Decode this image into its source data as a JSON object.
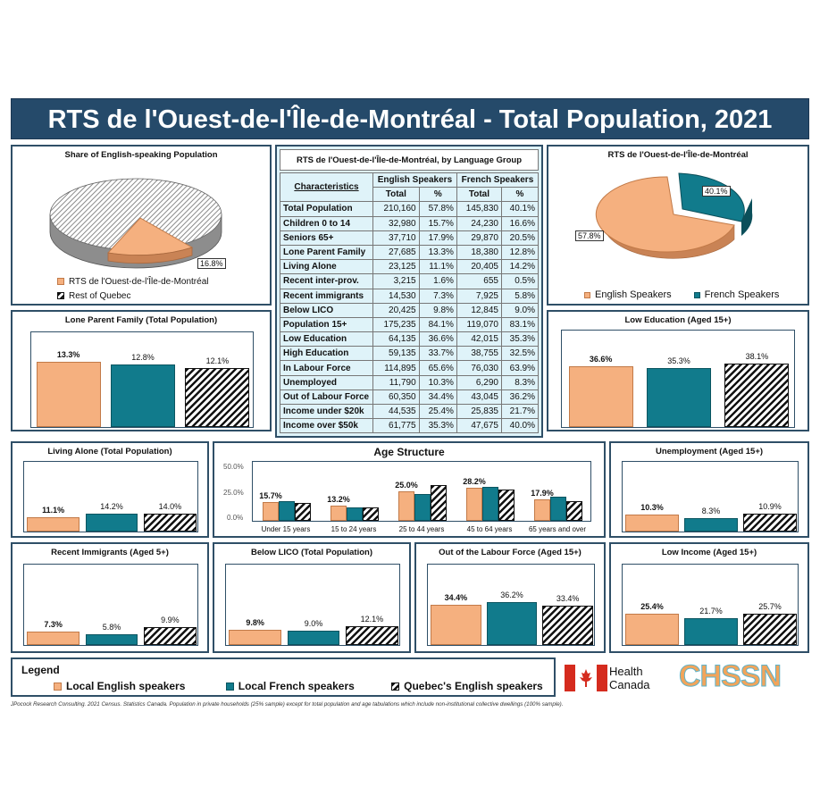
{
  "title": "RTS de l'Ouest-de-l'Île-de-Montréal - Total Population, 2021",
  "share_panel": {
    "title": "Share of English-speaking Population",
    "legend_local": "RTS de l'Ouest-de-l'Île-de-Montréal",
    "legend_rest": "Rest of Quebec",
    "slice_label": "16.8%"
  },
  "table": {
    "title": "RTS de l'Ouest-de-l'Île-de-Montréal, by Language Group",
    "col_char": "Characteristics",
    "col_eng": "English Speakers",
    "col_fr": "French Speakers",
    "col_total": "Total",
    "col_pct": "%",
    "rows": [
      [
        "Total Population",
        "210,160",
        "57.8%",
        "145,830",
        "40.1%"
      ],
      [
        "Children 0 to 14",
        "32,980",
        "15.7%",
        "24,230",
        "16.6%"
      ],
      [
        "Seniors 65+",
        "37,710",
        "17.9%",
        "29,870",
        "20.5%"
      ],
      [
        "Lone Parent Family",
        "27,685",
        "13.3%",
        "18,380",
        "12.8%"
      ],
      [
        "Living Alone",
        "23,125",
        "11.1%",
        "20,405",
        "14.2%"
      ],
      [
        "Recent inter-prov.",
        "3,215",
        "1.6%",
        "655",
        "0.5%"
      ],
      [
        "Recent immigrants",
        "14,530",
        "7.3%",
        "7,925",
        "5.8%"
      ],
      [
        "Below LICO",
        "20,425",
        "9.8%",
        "12,845",
        "9.0%"
      ],
      [
        "Population 15+",
        "175,235",
        "84.1%",
        "119,070",
        "83.1%"
      ],
      [
        "Low Education",
        "64,135",
        "36.6%",
        "42,015",
        "35.3%"
      ],
      [
        "High Education",
        "59,135",
        "33.7%",
        "38,755",
        "32.5%"
      ],
      [
        "In Labour Force",
        "114,895",
        "65.6%",
        "76,030",
        "63.9%"
      ],
      [
        "Unemployed",
        "11,790",
        "10.3%",
        "6,290",
        "8.3%"
      ],
      [
        "Out of Labour Force",
        "60,350",
        "34.4%",
        "43,045",
        "36.2%"
      ],
      [
        "Income under $20k",
        "44,535",
        "25.4%",
        "25,835",
        "21.7%"
      ],
      [
        "Income over $50k",
        "61,775",
        "35.3%",
        "47,675",
        "40.0%"
      ]
    ]
  },
  "lang_pie": {
    "title": "RTS de l'Ouest-de-l'Île-de-Montréal",
    "eng_label": "57.8%",
    "fr_label": "40.1%",
    "legend_eng": "English Speakers",
    "legend_fr": "French Speakers"
  },
  "age": {
    "title": "Age Structure",
    "yticks": [
      "50.0%",
      "25.0%",
      "0.0%"
    ],
    "categories": [
      "Under 15 years",
      "15 to 24 years",
      "25 to 44 years",
      "45 to 64 years",
      "65 years and over"
    ],
    "eng_labels": [
      "15.7%",
      "13.2%",
      "25.0%",
      "28.2%",
      "17.9%"
    ]
  },
  "legend": {
    "title": "Legend",
    "eng": "Local English speakers",
    "fr": "Local French speakers",
    "qc": "Quebec's English speakers"
  },
  "logos": {
    "hc1": "Health",
    "hc2": "Canada",
    "chssn": "CHSSN"
  },
  "footnote": "JPocock Research Consulting. 2021 Census. Statistics Canada. Population in private households (25% sample) except for total population and age tabulations which include non-institutional collective dwellings (100% sample).",
  "colors": {
    "english": "#f5b07f",
    "french": "#117b8c",
    "banner": "#254a6a",
    "quebec": "hatched black"
  },
  "chart_data": [
    {
      "type": "pie",
      "title": "Share of English-speaking Population",
      "labels": [
        "RTS de l'Ouest-de-l'Île-de-Montréal",
        "Rest of Quebec"
      ],
      "values": [
        16.8,
        83.2
      ]
    },
    {
      "type": "pie",
      "title": "RTS de l'Ouest-de-l'Île-de-Montréal",
      "labels": [
        "English Speakers",
        "French Speakers"
      ],
      "values": [
        57.8,
        40.1
      ]
    },
    {
      "type": "bar",
      "title": "Lone Parent Family (Total Population)",
      "categories": [
        "Local English speakers",
        "Local French speakers",
        "Quebec's English speakers"
      ],
      "values": [
        13.3,
        12.8,
        12.1
      ],
      "labels": [
        "13.3%",
        "12.8%",
        "12.1%"
      ]
    },
    {
      "type": "bar",
      "title": "Low Education (Aged 15+)",
      "categories": [
        "Local English speakers",
        "Local French speakers",
        "Quebec's English speakers"
      ],
      "values": [
        36.6,
        35.3,
        38.1
      ],
      "labels": [
        "36.6%",
        "35.3%",
        "38.1%"
      ]
    },
    {
      "type": "bar",
      "title": "Living Alone (Total Population)",
      "categories": [
        "Local English speakers",
        "Local French speakers",
        "Quebec's English speakers"
      ],
      "values": [
        11.1,
        14.2,
        14.0
      ],
      "labels": [
        "11.1%",
        "14.2%",
        "14.0%"
      ]
    },
    {
      "type": "bar",
      "title": "Age Structure",
      "categories": [
        "Under 15 years",
        "15 to 24 years",
        "25 to 44 years",
        "45 to 64 years",
        "65 years and over"
      ],
      "ylim": [
        0,
        50
      ],
      "series": [
        {
          "name": "Local English speakers",
          "values": [
            15.7,
            13.2,
            25.0,
            28.2,
            17.9
          ]
        },
        {
          "name": "Local French speakers",
          "values": [
            16.6,
            11.0,
            23.0,
            28.5,
            20.5
          ]
        },
        {
          "name": "Quebec's English speakers",
          "values": [
            15.5,
            11.7,
            30.0,
            26.5,
            16.3
          ]
        }
      ]
    },
    {
      "type": "bar",
      "title": "Unemployment (Aged 15+)",
      "categories": [
        "Local English speakers",
        "Local French speakers",
        "Quebec's English speakers"
      ],
      "values": [
        10.3,
        8.3,
        10.9
      ],
      "labels": [
        "10.3%",
        "8.3%",
        "10.9%"
      ]
    },
    {
      "type": "bar",
      "title": "Recent Immigrants (Aged 5+)",
      "categories": [
        "Local English speakers",
        "Local French speakers",
        "Quebec's English speakers"
      ],
      "values": [
        7.3,
        5.8,
        9.9
      ],
      "labels": [
        "7.3%",
        "5.8%",
        "9.9%"
      ]
    },
    {
      "type": "bar",
      "title": "Below LICO (Total Population)",
      "categories": [
        "Local English speakers",
        "Local French speakers",
        "Quebec's English speakers"
      ],
      "values": [
        9.8,
        9.0,
        12.1
      ],
      "labels": [
        "9.8%",
        "9.0%",
        "12.1%"
      ]
    },
    {
      "type": "bar",
      "title": "Out of the Labour Force (Aged 15+)",
      "categories": [
        "Local English speakers",
        "Local French speakers",
        "Quebec's English speakers"
      ],
      "values": [
        34.4,
        36.2,
        33.4
      ],
      "labels": [
        "34.4%",
        "36.2%",
        "33.4%"
      ]
    },
    {
      "type": "bar",
      "title": "Low Income (Aged 15+)",
      "categories": [
        "Local English speakers",
        "Local French speakers",
        "Quebec's English speakers"
      ],
      "values": [
        25.4,
        21.7,
        25.7
      ],
      "labels": [
        "25.4%",
        "21.7%",
        "25.7%"
      ]
    }
  ]
}
